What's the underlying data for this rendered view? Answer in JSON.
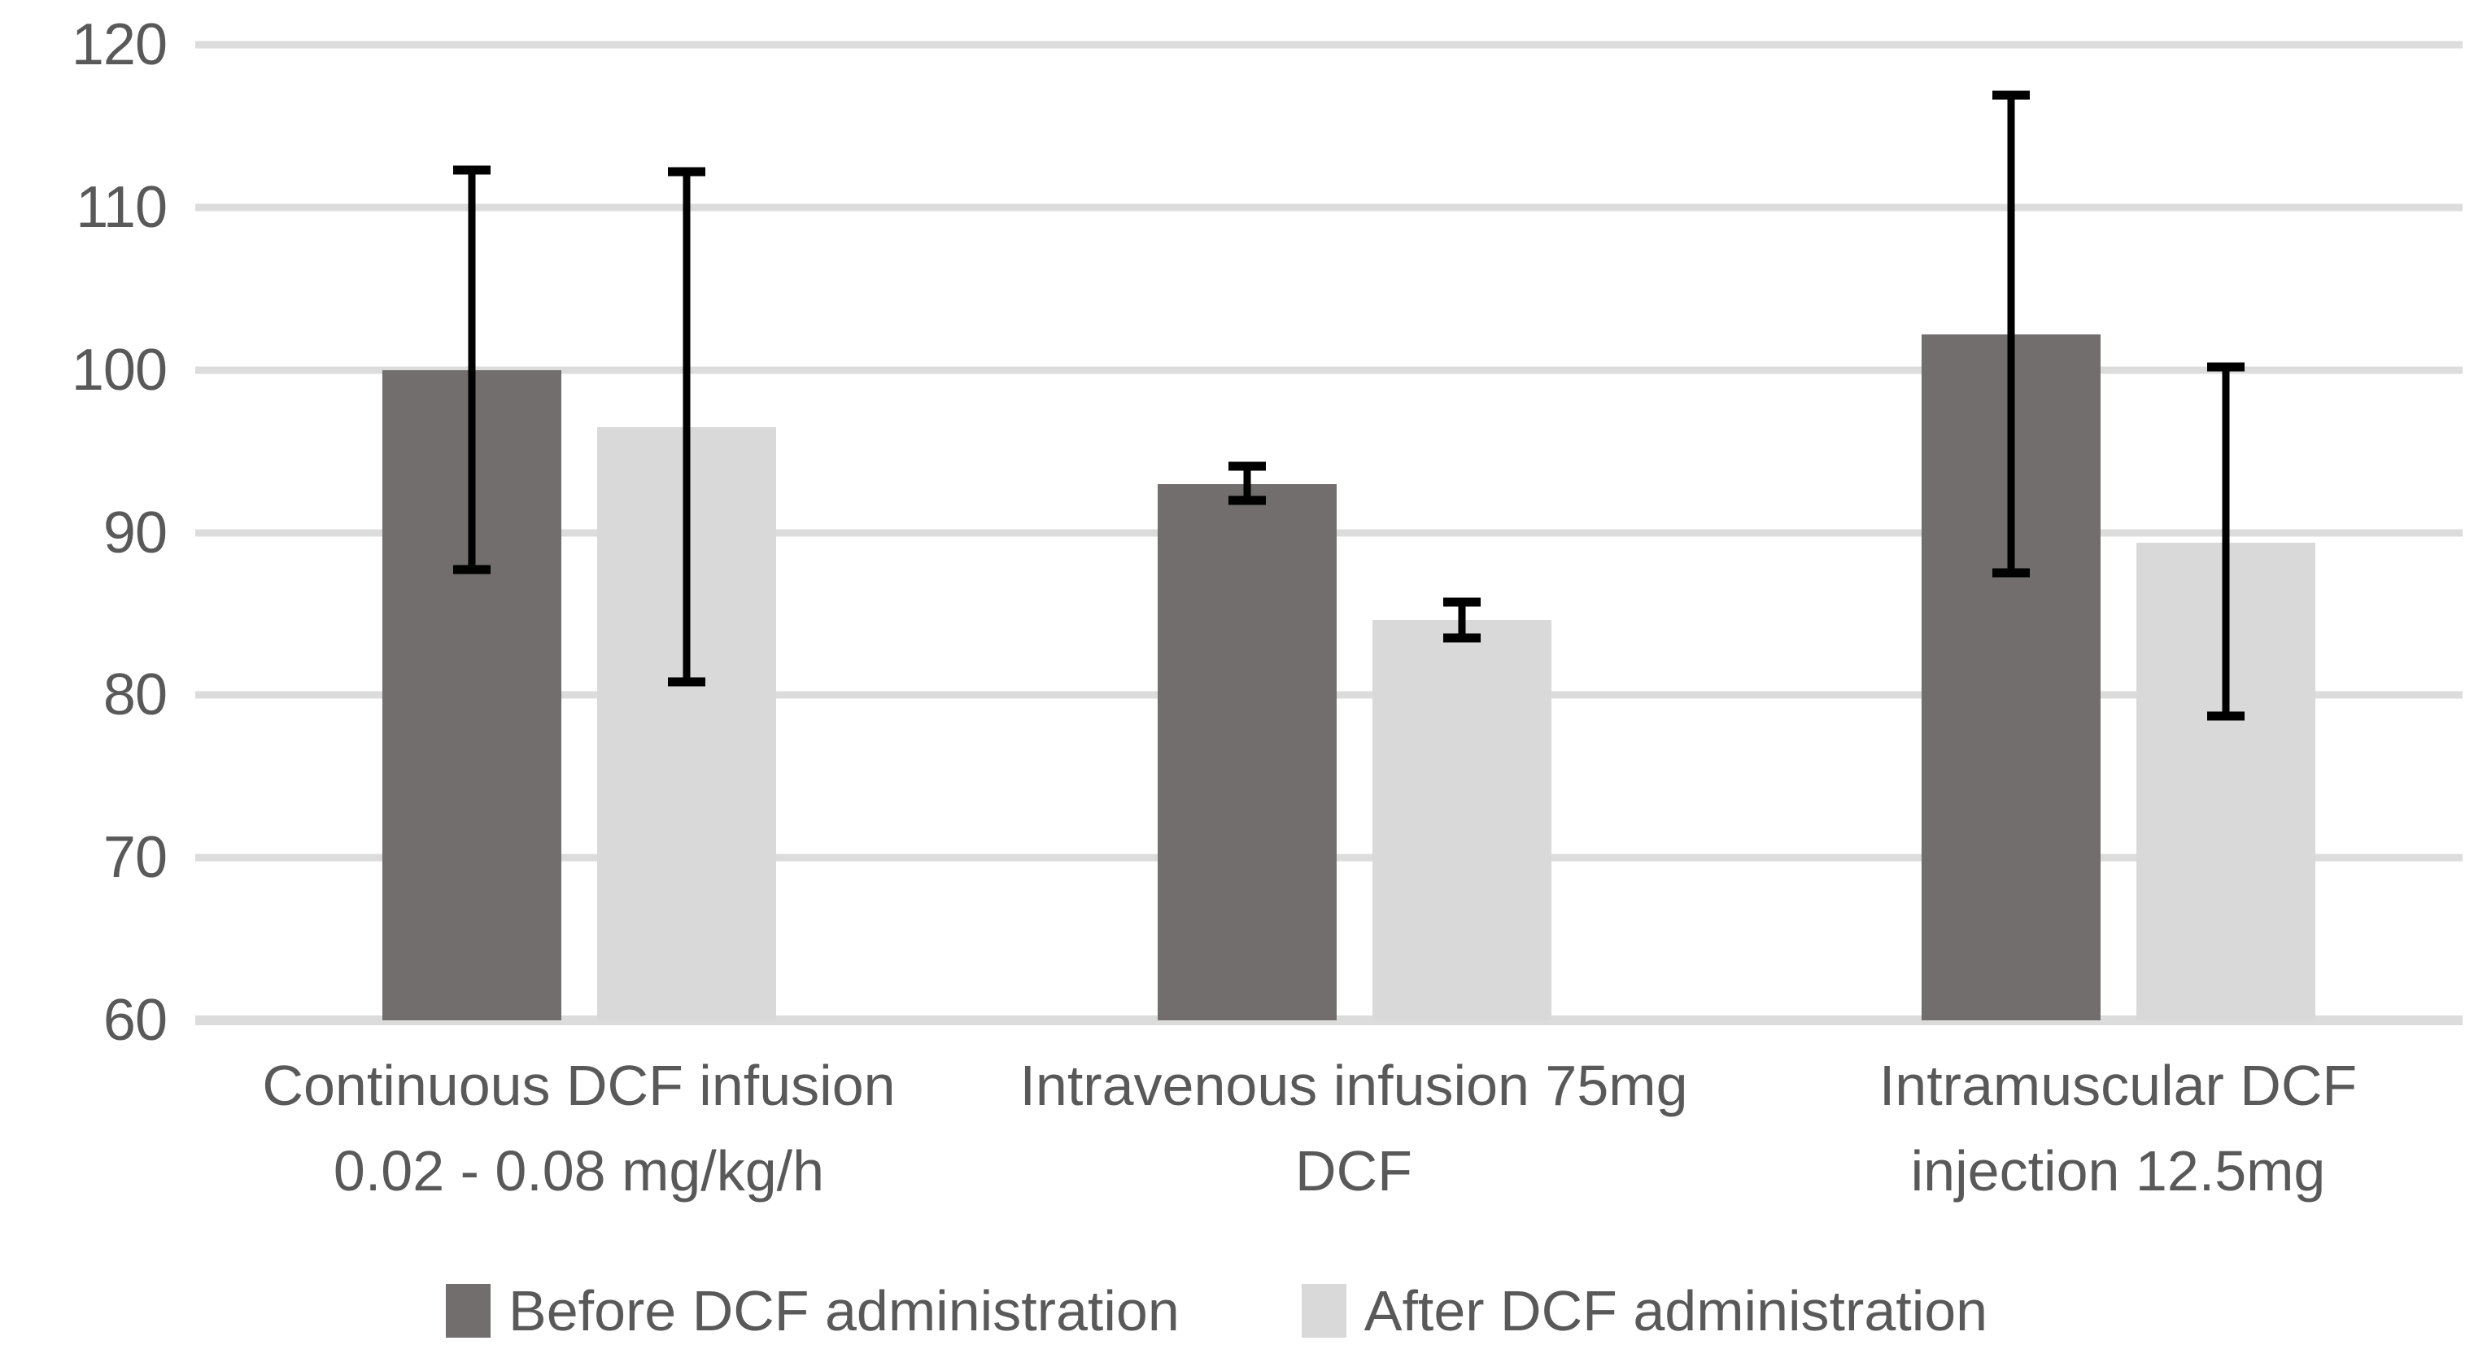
{
  "chart_data": {
    "type": "bar",
    "title": "",
    "xlabel": "",
    "ylabel": "",
    "categories": [
      {
        "label_lines": [
          "Continuous DCF infusion",
          "0.02 - 0.08 mg/kg/h"
        ]
      },
      {
        "label_lines": [
          "Intravenous infusion 75mg",
          "DCF"
        ]
      },
      {
        "label_lines": [
          "Intramuscular DCF",
          "injection 12.5mg"
        ]
      }
    ],
    "series": [
      {
        "name": "Before DCF administration",
        "color": "#716E6D",
        "values": [
          100,
          93,
          102.2
        ],
        "error_low": [
          87.7,
          92.0,
          87.5
        ],
        "error_high": [
          112.3,
          94.1,
          116.9
        ]
      },
      {
        "name": "After DCF administration",
        "color": "#D9D9D9",
        "values": [
          96.5,
          84.6,
          89.4
        ],
        "error_low": [
          80.8,
          83.5,
          78.7
        ],
        "error_high": [
          112.2,
          85.7,
          100.2
        ]
      }
    ],
    "y_axis": {
      "min": 60,
      "max": 120,
      "step": 10,
      "ticks": [
        120,
        110,
        100,
        90,
        80,
        70,
        60
      ]
    },
    "grid": true,
    "legend_position": "bottom",
    "colors": {
      "gridline": "#DCDCDC",
      "error_bar": "#000000",
      "text": "#595959",
      "background": "#FFFFFF"
    }
  }
}
